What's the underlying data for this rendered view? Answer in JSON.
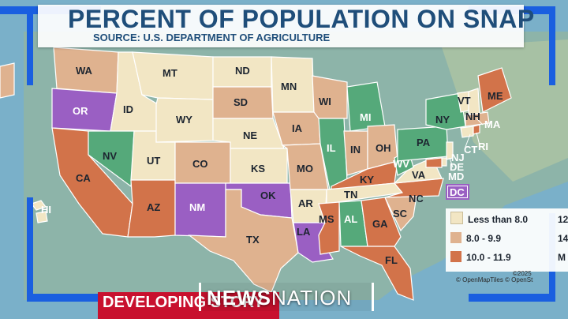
{
  "title": "PERCENT OF POPULATION ON SNAP",
  "source": "SOURCE: U.S. DEPARTMENT OF AGRICULTURE",
  "colors": {
    "less_than_8": "#f2e6c4",
    "range_8_9_9": "#dfb28f",
    "range_10_11_9": "#d2734a",
    "range_12_13_9": "#55a97a",
    "range_14_plus": "#9a5fc3"
  },
  "legend": {
    "items": [
      {
        "label": "Less than 8.0",
        "extra": "12"
      },
      {
        "label": "8.0 - 9.9",
        "extra": "14"
      },
      {
        "label": "10.0 - 11.9",
        "extra": "M"
      }
    ]
  },
  "states": {
    "WA": "WA",
    "OR": "OR",
    "CA": "CA",
    "ID": "ID",
    "NV": "NV",
    "UT": "UT",
    "AZ": "AZ",
    "MT": "MT",
    "WY": "WY",
    "CO": "CO",
    "NM": "NM",
    "ND": "ND",
    "SD": "SD",
    "NE": "NE",
    "KS": "KS",
    "OK": "OK",
    "TX": "TX",
    "MN": "MN",
    "IA": "IA",
    "MO": "MO",
    "AR": "AR",
    "LA": "LA",
    "WI": "WI",
    "IL": "IL",
    "MI": "MI",
    "IN": "IN",
    "OH": "OH",
    "KY": "KY",
    "TN": "TN",
    "MS": "MS",
    "AL": "AL",
    "GA": "GA",
    "FL": "FL",
    "SC": "SC",
    "NC": "NC",
    "VA": "VA",
    "WV": "WV",
    "PA": "PA",
    "NY": "NY",
    "VT": "VT",
    "NH": "NH",
    "ME": "ME",
    "MA": "MA",
    "CT": "CT",
    "RI": "RI",
    "NJ": "NJ",
    "DE": "DE",
    "MD": "MD",
    "DC": "DC",
    "HI": "HI"
  },
  "credits": "© OpenMapTiles  © OpenSt",
  "copyright": "©2025",
  "banner": "DEVELOPING STORY",
  "network": {
    "news": "NEWS",
    "nation": "NATION"
  }
}
